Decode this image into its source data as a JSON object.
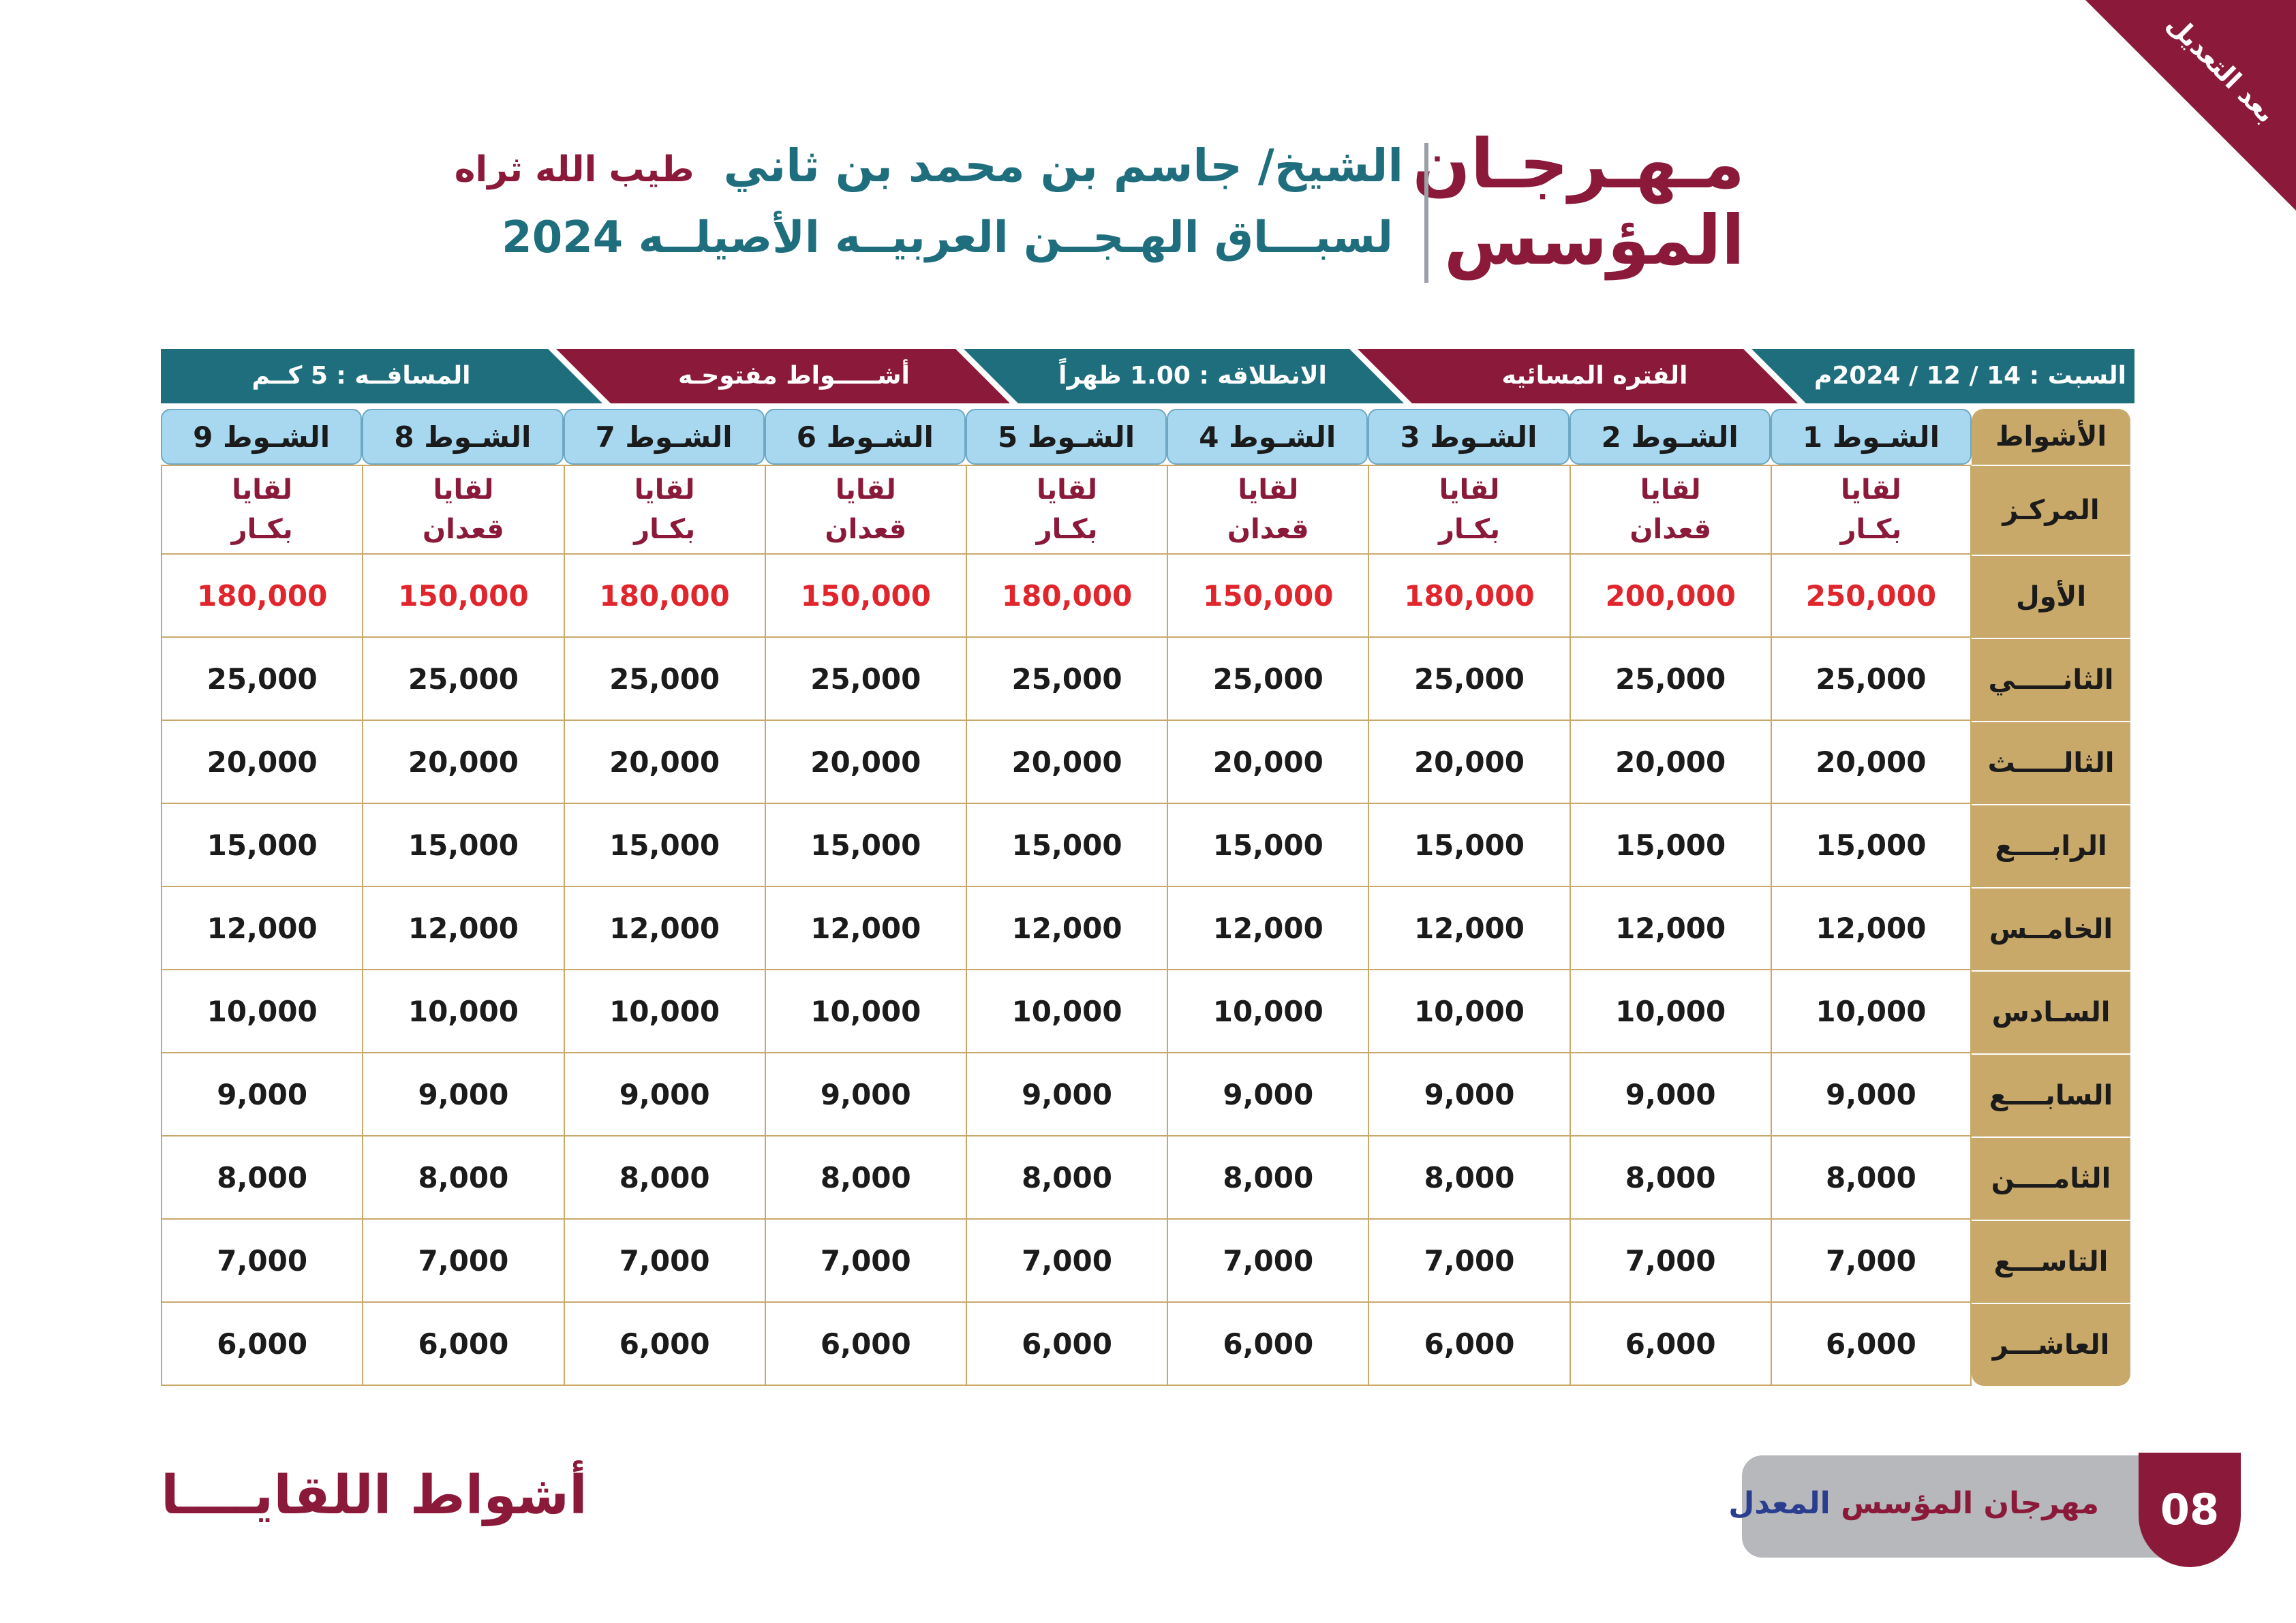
{
  "corner_label": "بعد التعديل",
  "title": {
    "line1": "مـهـرجـان",
    "line2": "المؤسس"
  },
  "subtitle": {
    "line1": "الشيخ/ جاسم بن محمد بن ثاني",
    "honorific": "طيب الله ثراه",
    "line2": "لسبـــاق الهـجــن العربيــه الأصيلــه 2024"
  },
  "band": {
    "date": "السبت : 14 / 12 / 2024م",
    "period": "الفتره المسائيه",
    "start": "الانطلاقه :   1.00  ظهراً",
    "open": "أشـــــواط مفتوحـه",
    "distance": "المسافــه : 5 كــم"
  },
  "table": {
    "corner_header": "الأشواط",
    "races": [
      "الشـوط 1",
      "الشـوط 2",
      "الشـوط 3",
      "الشـوط 4",
      "الشـوط 5",
      "الشـوط 6",
      "الشـوط 7",
      "الشـوط 8",
      "الشـوط 9"
    ],
    "center_label": "المركـز",
    "centers": [
      [
        "لقايا",
        "بكـار"
      ],
      [
        "لقايا",
        "قعدان"
      ],
      [
        "لقايا",
        "بكـار"
      ],
      [
        "لقايا",
        "قعدان"
      ],
      [
        "لقايا",
        "بكـار"
      ],
      [
        "لقايا",
        "قعدان"
      ],
      [
        "لقايا",
        "بكـار"
      ],
      [
        "لقايا",
        "قعدان"
      ],
      [
        "لقايا",
        "بكـار"
      ]
    ],
    "ranks": [
      {
        "label": "الأول",
        "values": [
          "250,000",
          "200,000",
          "180,000",
          "150,000",
          "180,000",
          "150,000",
          "180,000",
          "150,000",
          "180,000"
        ]
      },
      {
        "label": "الثانـــــي",
        "values": [
          "25,000",
          "25,000",
          "25,000",
          "25,000",
          "25,000",
          "25,000",
          "25,000",
          "25,000",
          "25,000"
        ]
      },
      {
        "label": "الثالـــــث",
        "values": [
          "20,000",
          "20,000",
          "20,000",
          "20,000",
          "20,000",
          "20,000",
          "20,000",
          "20,000",
          "20,000"
        ]
      },
      {
        "label": "الرابــــع",
        "values": [
          "15,000",
          "15,000",
          "15,000",
          "15,000",
          "15,000",
          "15,000",
          "15,000",
          "15,000",
          "15,000"
        ]
      },
      {
        "label": "الخامــس",
        "values": [
          "12,000",
          "12,000",
          "12,000",
          "12,000",
          "12,000",
          "12,000",
          "12,000",
          "12,000",
          "12,000"
        ]
      },
      {
        "label": "السـادس",
        "values": [
          "10,000",
          "10,000",
          "10,000",
          "10,000",
          "10,000",
          "10,000",
          "10,000",
          "10,000",
          "10,000"
        ]
      },
      {
        "label": "السابــــع",
        "values": [
          "9,000",
          "9,000",
          "9,000",
          "9,000",
          "9,000",
          "9,000",
          "9,000",
          "9,000",
          "9,000"
        ]
      },
      {
        "label": "الثامــــن",
        "values": [
          "8,000",
          "8,000",
          "8,000",
          "8,000",
          "8,000",
          "8,000",
          "8,000",
          "8,000",
          "8,000"
        ]
      },
      {
        "label": "التاســـع",
        "values": [
          "7,000",
          "7,000",
          "7,000",
          "7,000",
          "7,000",
          "7,000",
          "7,000",
          "7,000",
          "7,000"
        ]
      },
      {
        "label": "العاشـــر",
        "values": [
          "6,000",
          "6,000",
          "6,000",
          "6,000",
          "6,000",
          "6,000",
          "6,000",
          "6,000",
          "6,000"
        ]
      }
    ]
  },
  "footer": {
    "logo": "أشواط اللقايــــا",
    "label_main": "مهرجان المؤسس",
    "label_accent": "المعدل",
    "page": "08"
  },
  "colors": {
    "maroon": "#8b1a3a",
    "teal": "#1f6e7e",
    "gold": "#c9a96a",
    "light_blue": "#a8d8f0",
    "red_value": "#e0252c"
  }
}
